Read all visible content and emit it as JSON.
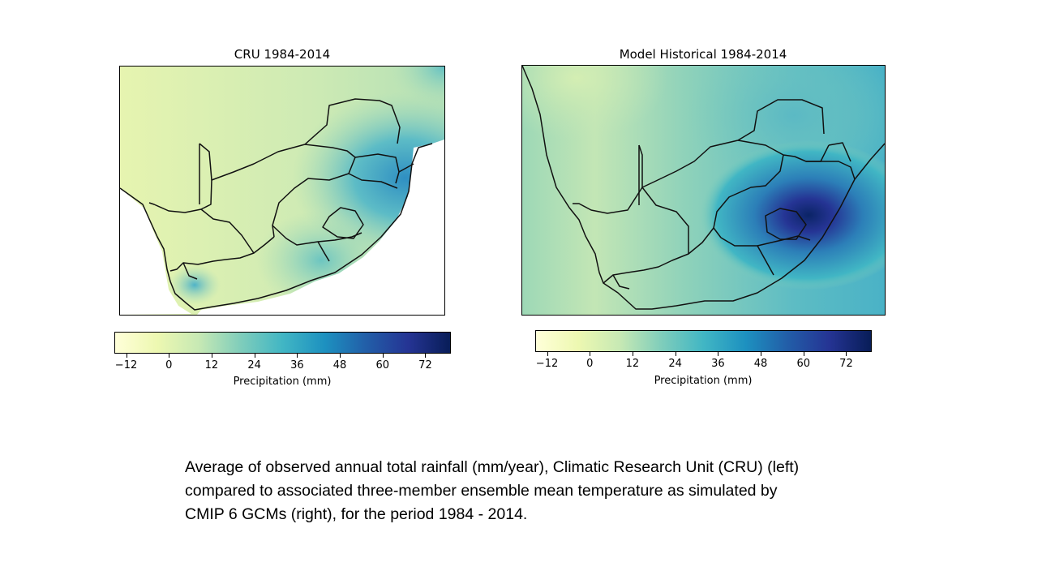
{
  "colorbar_gradient": [
    "#ffffd9",
    "#edf8b1",
    "#c7e9b4",
    "#7fcdbb",
    "#41b6c4",
    "#1d91c0",
    "#225ea8",
    "#253494",
    "#081d58"
  ],
  "panels": [
    {
      "title": "CRU 1984-2014",
      "colorbar": {
        "ticks": [
          "−12",
          "0",
          "12",
          "24",
          "36",
          "48",
          "60",
          "72"
        ],
        "label": "Precipitation (mm)"
      }
    },
    {
      "title": "Model Historical 1984-2014",
      "colorbar": {
        "ticks": [
          "−12",
          "0",
          "12",
          "24",
          "36",
          "48",
          "60",
          "72"
        ],
        "label": "Precipitation (mm)"
      }
    }
  ],
  "caption": {
    "line1": "Average of observed annual total rainfall (mm/year), Climatic Research Unit (CRU) (left)",
    "line2": "compared to associated three-member ensemble mean temperature as simulated by",
    "line3": "CMIP 6 GCMs (right), for the period 1984 - 2014."
  }
}
